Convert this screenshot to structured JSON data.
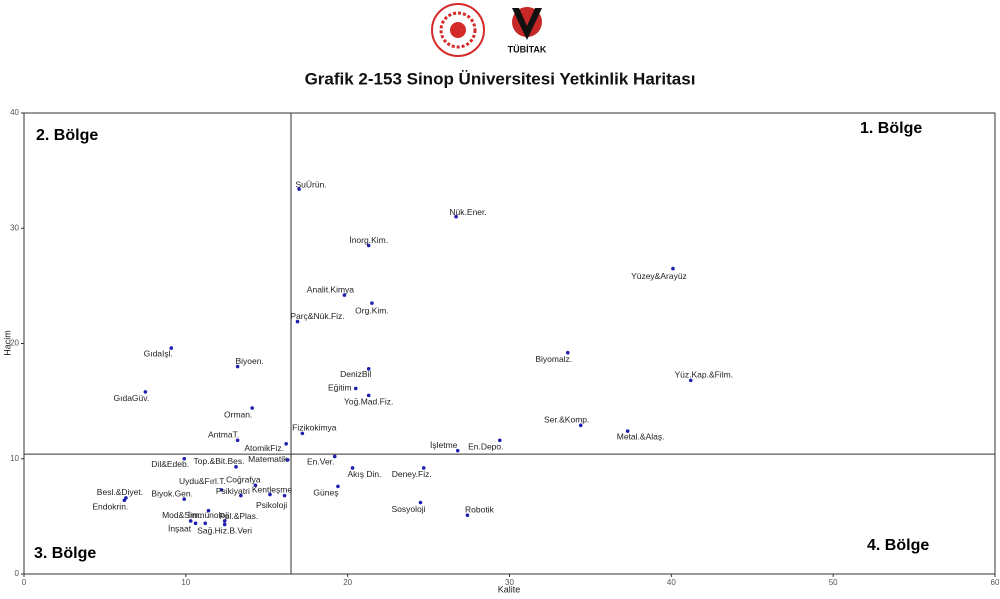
{
  "logo_text": "TÜBİTAK",
  "chart_data": {
    "type": "scatter",
    "title": "Grafik 2-153 Sinop Üniversitesi Yetkinlik Haritası",
    "xlabel": "Kalite",
    "ylabel": "Hacim",
    "xlim": [
      0,
      60
    ],
    "ylim": [
      0,
      40
    ],
    "xticks": [
      0,
      10,
      20,
      30,
      40,
      50,
      60
    ],
    "yticks": [
      0,
      10,
      20,
      30,
      40
    ],
    "reference_lines": {
      "x": 16.5,
      "y": 10.4
    },
    "regions": [
      "1. Bölge",
      "2. Bölge",
      "3. Bölge",
      "4. Bölge"
    ],
    "color": "#2020b0",
    "labels": [
      "SuÜrün.",
      "Nük.Ener.",
      "İnorg.Kim.",
      "Yüzey&Arayüz",
      "Analit.Kimya",
      "Org.Kim.",
      "Parç&Nük.Fiz.",
      "GıdaIşl.",
      "Biyoen.",
      "Biyomalz.",
      "DenizBil",
      "Yüz.Kap.&Film.",
      "Eğitim",
      "GıdaGüv.",
      "Yoğ.Mad.Fiz.",
      "Orman.",
      "Ser.&Komp.",
      "Metal.&Alaş.",
      "Fizikokimya",
      "AntmaT.",
      "En.Depo.",
      "AtomikFiz.",
      "İşletme",
      "Matematik",
      "En.Ver.",
      "Dil&Edeb.",
      "Top.&Bit.Bes.",
      "Akış Din.",
      "Deney.Fiz.",
      "Coğrafya",
      "Uydu&Fırl.T.",
      "Güneş",
      "Psikiyatri",
      "Kentleşme",
      "Psikoloji",
      "Besl.&Diyet.",
      "Biyok.Gen.",
      "Endokrin.",
      "Sosyoloji",
      "İmmünoloji",
      "Robotik",
      "Mod&Sim.",
      "Pol.&Plas.",
      "İnşaat",
      "Sağ.Hiz.",
      "B.Veri"
    ],
    "x": [
      17.0,
      26.7,
      21.3,
      40.1,
      19.8,
      21.5,
      16.9,
      9.1,
      13.2,
      33.6,
      21.3,
      41.2,
      20.5,
      7.5,
      21.3,
      14.1,
      34.4,
      37.3,
      17.2,
      13.2,
      29.4,
      16.2,
      26.8,
      16.3,
      19.2,
      9.9,
      13.1,
      20.3,
      24.7,
      14.3,
      12.2,
      19.4,
      13.4,
      15.2,
      16.1,
      6.3,
      9.9,
      6.2,
      24.5,
      11.4,
      27.4,
      10.3,
      12.4,
      10.6,
      11.2,
      12.4
    ],
    "values": [
      33.4,
      31.0,
      28.5,
      26.5,
      24.2,
      23.5,
      21.9,
      19.6,
      18.0,
      19.2,
      17.8,
      16.8,
      16.1,
      15.8,
      15.5,
      14.4,
      12.9,
      12.4,
      12.2,
      11.6,
      11.6,
      11.3,
      10.7,
      9.9,
      10.2,
      10.0,
      9.3,
      9.2,
      9.2,
      7.7,
      7.3,
      7.6,
      6.8,
      6.9,
      6.8,
      6.6,
      6.5,
      6.4,
      6.2,
      5.5,
      5.1,
      4.6,
      4.6,
      4.4,
      4.4,
      4.3
    ]
  }
}
